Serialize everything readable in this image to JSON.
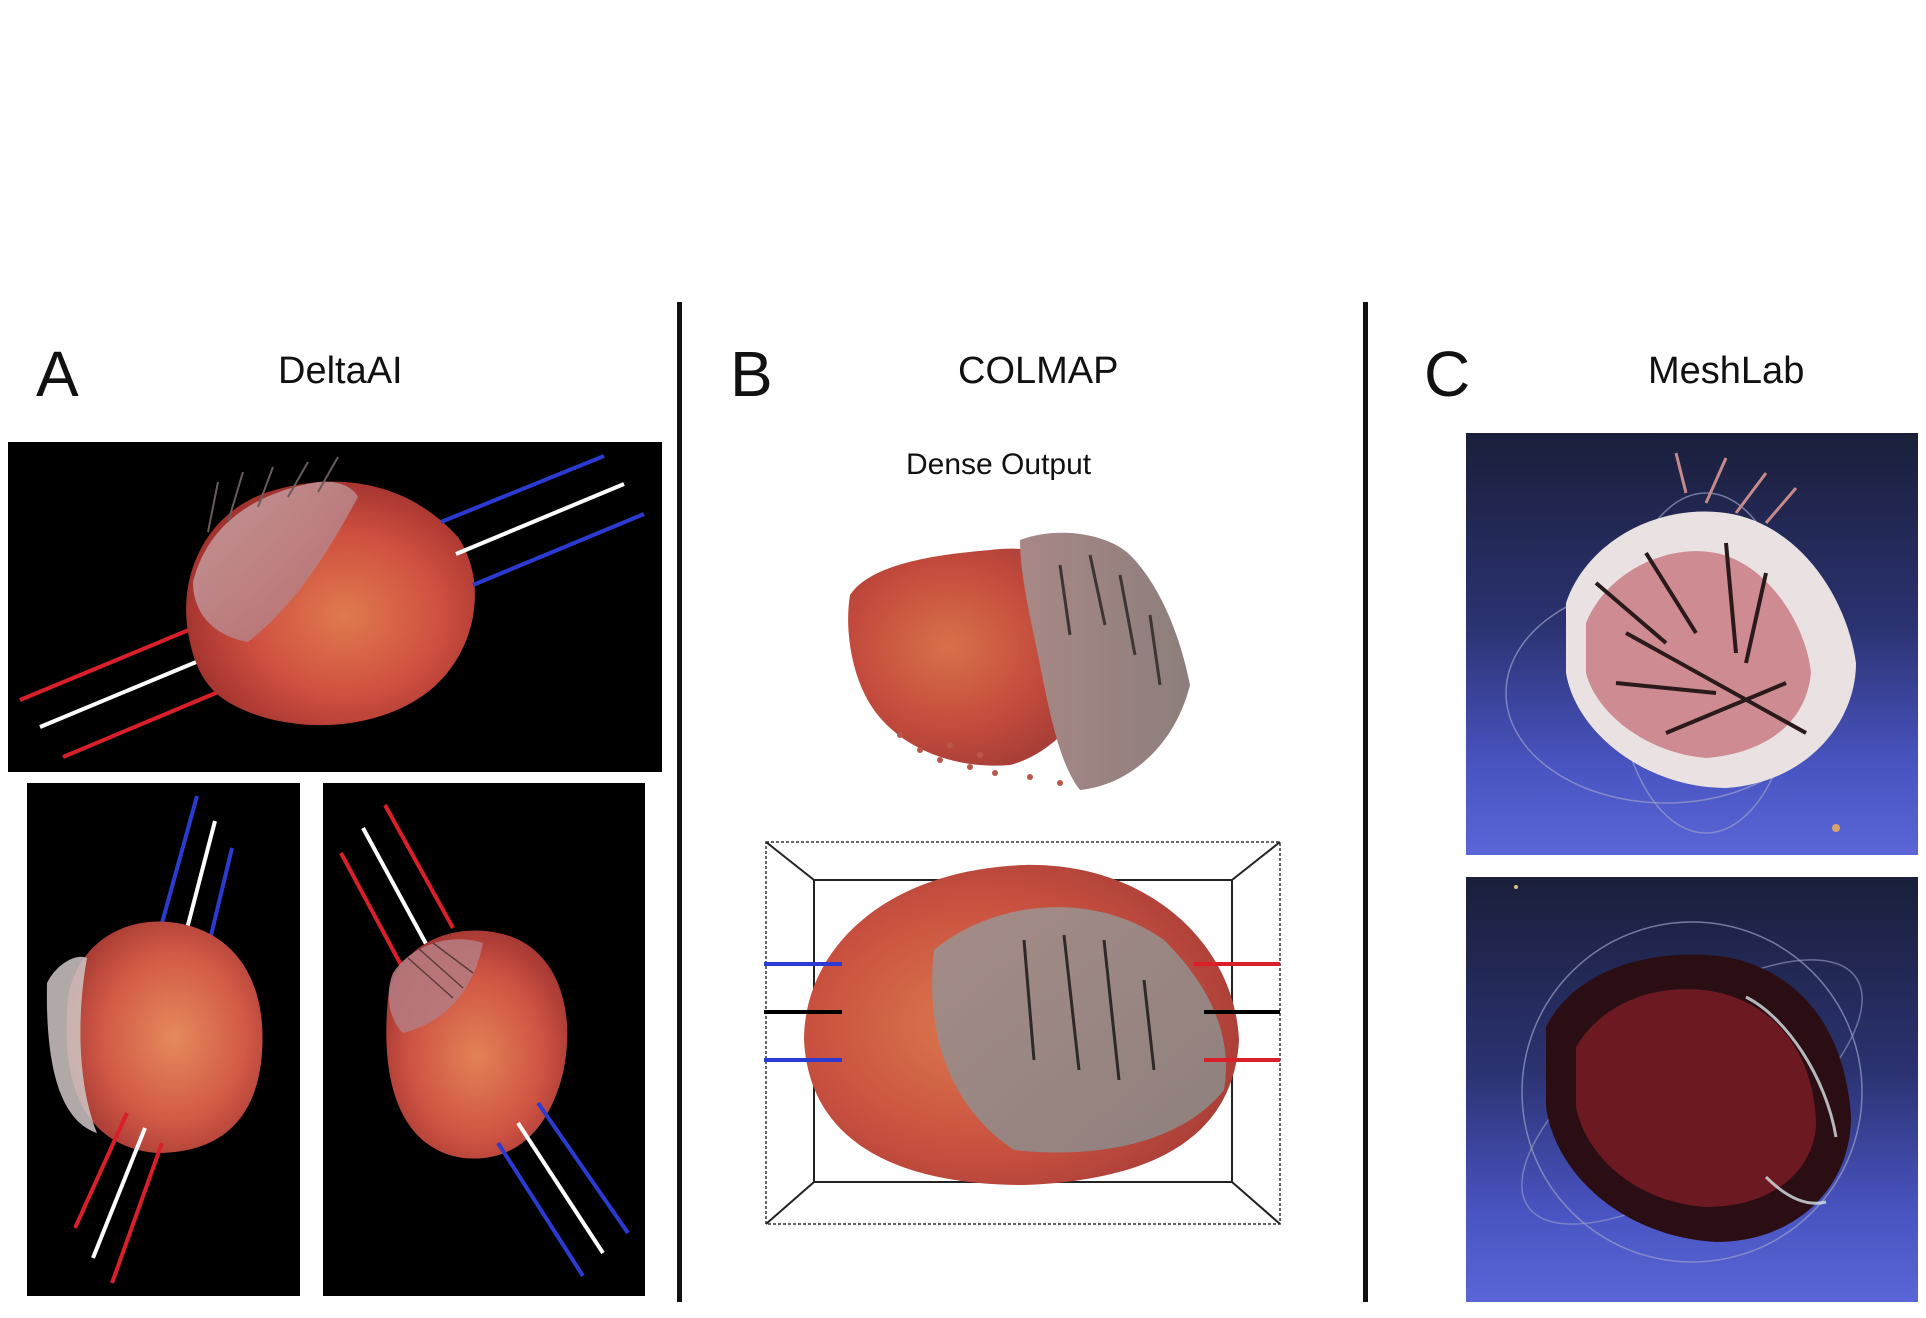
{
  "panels": {
    "a": {
      "letter": "A",
      "title": "DeltaAI"
    },
    "b": {
      "letter": "B",
      "title": "COLMAP",
      "subtitle": "Dense Output"
    },
    "c": {
      "letter": "C",
      "title": "MeshLab"
    }
  },
  "colors": {
    "marker_blue": "#2b3bd1",
    "marker_red": "#d81f2a",
    "marker_white": "#ffffff",
    "marker_black": "#000000",
    "tissue": "#c8483c",
    "meshlab_background_top": "#1a1f3a",
    "meshlab_background_bottom": "#5b66d6"
  }
}
